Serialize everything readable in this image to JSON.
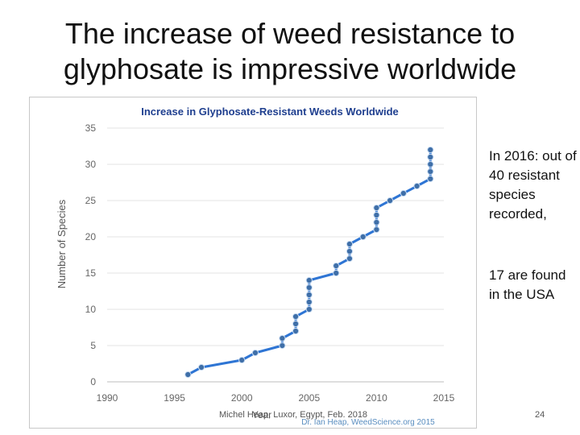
{
  "slide": {
    "title_line1": "The increase of weed resistance to",
    "title_line2": "glyphosate is impressive worldwide",
    "side_text_1": "In 2016: out of 40 resistant species recorded,",
    "side_text_2": "17 are found in the USA",
    "footer": "Michel Heap, Luxor, Egypt, Feb. 2018",
    "page_number": "24"
  },
  "chart_data": {
    "type": "line",
    "title": "Increase in Glyphosate-Resistant Weeds Worldwide",
    "xlabel": "Year",
    "ylabel": "Number of Species",
    "xlim": [
      1990,
      2015
    ],
    "ylim": [
      0,
      35
    ],
    "x_ticks": [
      1990,
      1995,
      2000,
      2005,
      2010,
      2015
    ],
    "y_ticks": [
      0,
      5,
      10,
      15,
      20,
      25,
      30,
      35
    ],
    "grid": "horizontal",
    "credit": "Dr. Ian Heap, WeedScience.org 2015",
    "series": [
      {
        "color": "#2e75d4",
        "marker_color": "#3f6fa8",
        "points": [
          [
            1996,
            1
          ],
          [
            1997,
            2
          ],
          [
            2000,
            3
          ],
          [
            2001,
            4
          ],
          [
            2003,
            5
          ],
          [
            2003,
            6
          ],
          [
            2004,
            7
          ],
          [
            2004,
            8
          ],
          [
            2004,
            9
          ],
          [
            2005,
            10
          ],
          [
            2005,
            11
          ],
          [
            2005,
            12
          ],
          [
            2005,
            13
          ],
          [
            2005,
            14
          ],
          [
            2007,
            15
          ],
          [
            2007,
            16
          ],
          [
            2008,
            17
          ],
          [
            2008,
            18
          ],
          [
            2008,
            19
          ],
          [
            2009,
            20
          ],
          [
            2010,
            21
          ],
          [
            2010,
            22
          ],
          [
            2010,
            23
          ],
          [
            2010,
            24
          ],
          [
            2011,
            25
          ],
          [
            2012,
            26
          ],
          [
            2013,
            27
          ],
          [
            2014,
            28
          ],
          [
            2014,
            29
          ],
          [
            2014,
            30
          ],
          [
            2014,
            31
          ],
          [
            2014,
            32
          ]
        ]
      }
    ]
  }
}
